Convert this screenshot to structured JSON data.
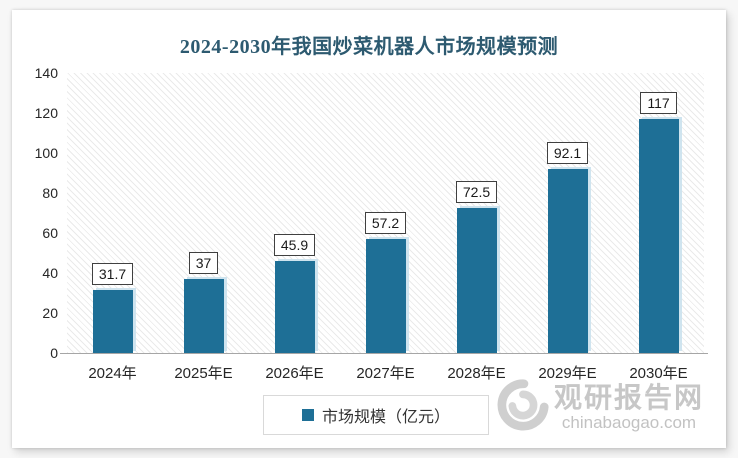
{
  "chart_data": {
    "type": "bar",
    "title": "2024-2030年我国炒菜机器人市场规模预测",
    "categories": [
      "2024年",
      "2025年E",
      "2026年E",
      "2027年E",
      "2028年E",
      "2029年E",
      "2030年E"
    ],
    "values": [
      31.7,
      37,
      45.9,
      57.2,
      72.5,
      92.1,
      117
    ],
    "value_labels": [
      "31.7",
      "37",
      "45.9",
      "57.2",
      "72.5",
      "92.1",
      "117"
    ],
    "xlabel": "",
    "ylabel": "",
    "ylim": [
      0,
      140
    ],
    "yticks": [
      0,
      20,
      40,
      60,
      80,
      100,
      120,
      140
    ],
    "grid": false,
    "legend_position": "bottom",
    "legend_entries": [
      "市场规模（亿元）"
    ]
  },
  "legend": {
    "label": "市场规模（亿元）"
  },
  "watermark": {
    "logo": "swirl-logo",
    "name": "观研报告网",
    "domain": "chinabaogao.com"
  },
  "colors": {
    "bar": "#1e6f96",
    "bar_shadow": "#cfe4ef",
    "title": "#2d5a70",
    "axis_line": "#a6a6a6",
    "value_label_border": "#404040",
    "legend_border": "#d9d9d9",
    "watermark_gray": "#c7c7c7"
  }
}
